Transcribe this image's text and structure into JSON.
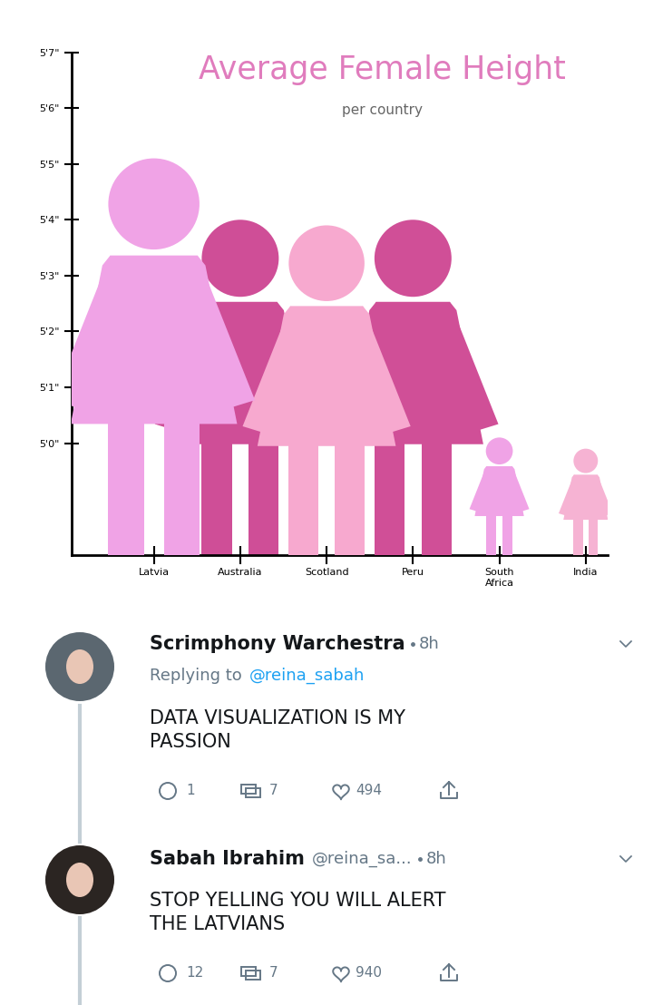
{
  "chart_data": {
    "type": "bar",
    "title": "Average Female Height",
    "subtitle": "per country",
    "categories": [
      "Latvia",
      "Australia",
      "Scotland",
      "Peru",
      "South Africa",
      "India"
    ],
    "values": [
      65.1,
      64.0,
      63.9,
      64.0,
      60.1,
      59.9
    ],
    "colors": [
      "#f0a3e6",
      "#cf4e97",
      "#f7a9cf",
      "#d04f97",
      "#f0a3e6",
      "#f6b3d3"
    ],
    "marker": "female",
    "ylim": [
      58,
      67
    ],
    "yticks": [
      {
        "value": 60,
        "label": "5'0\""
      },
      {
        "value": 61,
        "label": "5'1\""
      },
      {
        "value": 62,
        "label": "5'2\""
      },
      {
        "value": 63,
        "label": "5'3\""
      },
      {
        "value": 64,
        "label": "5'4\""
      },
      {
        "value": 65,
        "label": "5'5\""
      },
      {
        "value": 66,
        "label": "5'6\""
      },
      {
        "value": 67,
        "label": "5'7\""
      }
    ]
  },
  "tweets": [
    {
      "name": "Scrimphony Warchestra",
      "time": "8h",
      "replying_to": {
        "label": "Replying to",
        "handle": "@reina_sabah"
      },
      "text": "DATA VISUALIZATION IS MY PASSION",
      "replies": 1,
      "retweets": 7,
      "likes": 494
    },
    {
      "name": "Sabah Ibrahim",
      "handle": "@reina_sa...",
      "time": "8h",
      "text": "STOP YELLING YOU WILL ALERT THE LATVIANS",
      "replies": 12,
      "retweets": 7,
      "likes": 940
    }
  ]
}
